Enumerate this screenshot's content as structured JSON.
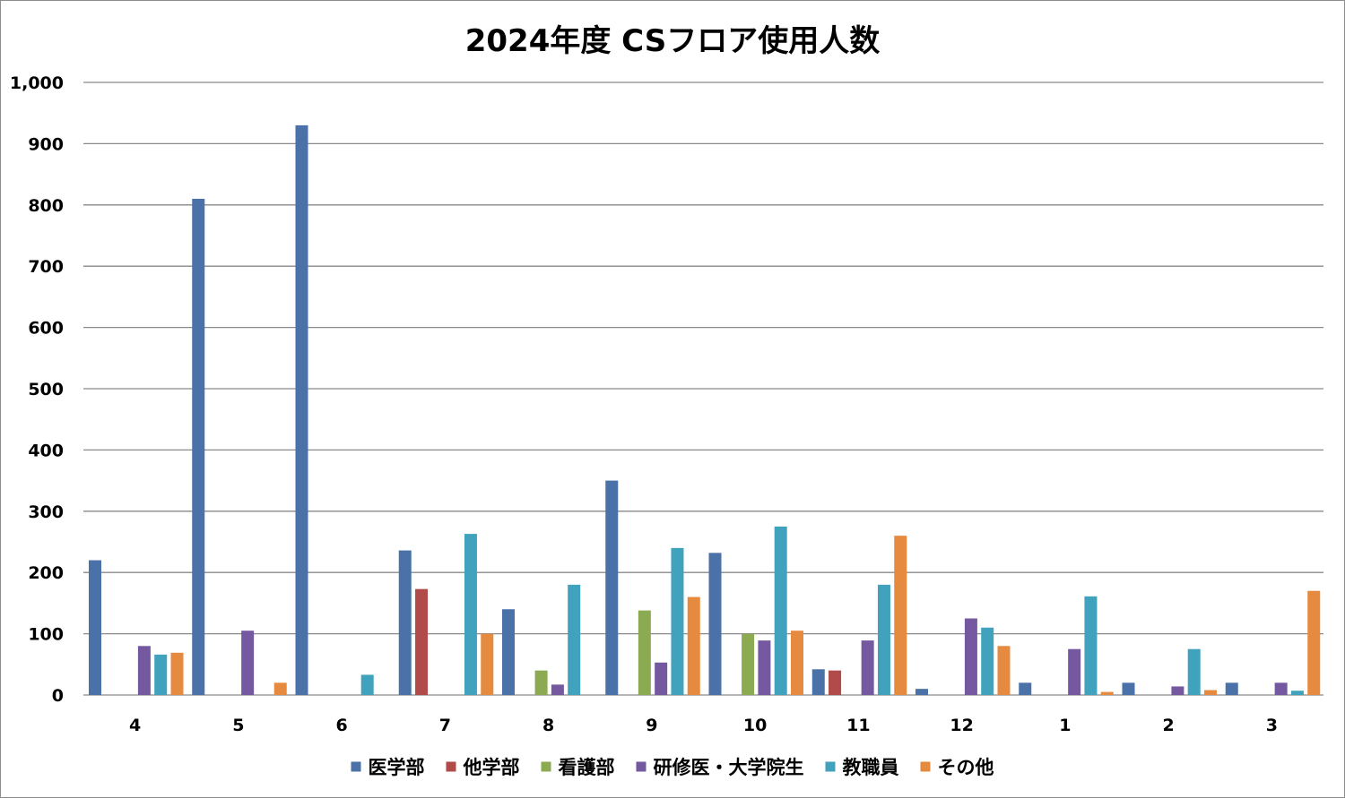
{
  "chart_data": {
    "type": "bar",
    "title": "2024年度 CSフロア使用人数",
    "categories": [
      "4",
      "5",
      "6",
      "7",
      "8",
      "9",
      "10",
      "11",
      "12",
      "1",
      "2",
      "3"
    ],
    "ylim": [
      0,
      1000
    ],
    "yticks": [
      0,
      100,
      200,
      300,
      400,
      500,
      600,
      700,
      800,
      900,
      1000
    ],
    "ytick_labels": [
      "0",
      "100",
      "200",
      "300",
      "400",
      "500",
      "600",
      "700",
      "800",
      "900",
      "1,000"
    ],
    "grid": true,
    "legend_position": "bottom",
    "series": [
      {
        "name": "医学部",
        "color": "#4a72a8",
        "values": [
          220,
          810,
          930,
          236,
          140,
          350,
          232,
          42,
          10,
          20,
          20,
          20
        ]
      },
      {
        "name": "他学部",
        "color": "#b14b4a",
        "values": [
          0,
          0,
          0,
          173,
          0,
          0,
          0,
          40,
          0,
          0,
          0,
          0
        ]
      },
      {
        "name": "看護部",
        "color": "#8caa52",
        "values": [
          0,
          0,
          0,
          0,
          40,
          138,
          100,
          0,
          0,
          0,
          0,
          0
        ]
      },
      {
        "name": "研修医・大学院生",
        "color": "#7559a0",
        "values": [
          80,
          105,
          0,
          0,
          17,
          53,
          89,
          89,
          125,
          75,
          14,
          20
        ]
      },
      {
        "name": "教職員",
        "color": "#40a2bd",
        "values": [
          66,
          0,
          33,
          263,
          180,
          240,
          275,
          180,
          110,
          161,
          75,
          7
        ]
      },
      {
        "name": "その他",
        "color": "#e68a3f",
        "values": [
          69,
          20,
          0,
          100,
          0,
          160,
          105,
          260,
          80,
          5,
          8,
          170
        ]
      }
    ]
  }
}
